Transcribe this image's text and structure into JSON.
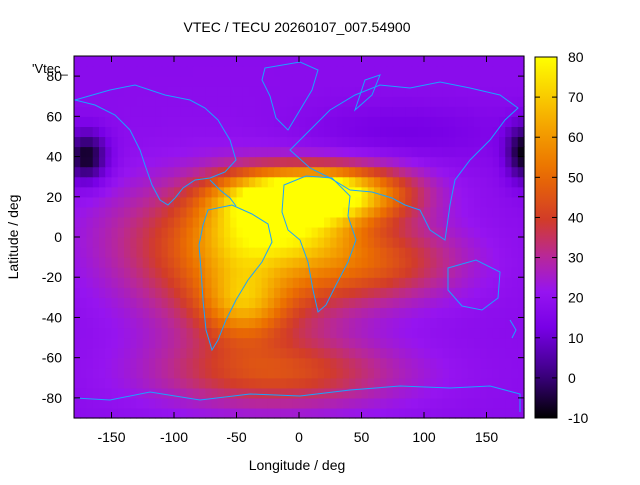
{
  "chart_data": {
    "type": "heatmap",
    "title": "VTEC / TECU 20260107_007.54900",
    "xlabel": "Longitude / deg",
    "ylabel": "Latitude / deg",
    "xlim": [
      -180,
      180
    ],
    "ylim": [
      -90,
      90
    ],
    "x_ticks": [
      -150,
      -100,
      -50,
      0,
      50,
      100,
      150
    ],
    "y_ticks": [
      -80,
      -60,
      -40,
      -20,
      0,
      20,
      40,
      60,
      80
    ],
    "colorbar": {
      "min": -10,
      "max": 80,
      "ticks": [
        -10,
        0,
        10,
        20,
        30,
        40,
        50,
        60,
        70,
        80
      ]
    },
    "key_label": "'Vtec_",
    "background_level": 18,
    "features": [
      {
        "lon": -5,
        "lat": 21,
        "peak": 62,
        "sx": 38,
        "sy": 9
      },
      {
        "lon": 25,
        "lat": 22,
        "peak": 10,
        "sx": 20,
        "sy": 8
      },
      {
        "lon": -45,
        "lat": 4,
        "peak": 22,
        "sx": 28,
        "sy": 14
      },
      {
        "lon": 5,
        "lat": 2,
        "peak": 22,
        "sx": 30,
        "sy": 10
      },
      {
        "lon": -45,
        "lat": -33,
        "peak": 24,
        "sx": 22,
        "sy": 12
      },
      {
        "lon": 55,
        "lat": 22,
        "peak": 28,
        "sx": 35,
        "sy": 10
      },
      {
        "lon": 60,
        "lat": -12,
        "peak": 24,
        "sx": 50,
        "sy": 14
      },
      {
        "lon": -40,
        "lat": -15,
        "peak": 30,
        "sx": 55,
        "sy": 28
      },
      {
        "lon": -15,
        "lat": -68,
        "peak": 22,
        "sx": 70,
        "sy": 12
      },
      {
        "lon": -110,
        "lat": 0,
        "peak": 10,
        "sx": 50,
        "sy": 20
      },
      {
        "lon": -170,
        "lat": 40,
        "peak": -26,
        "sx": 12,
        "sy": 9
      },
      {
        "lon": 180,
        "lat": 42,
        "peak": -26,
        "sx": 10,
        "sy": 10
      },
      {
        "lon": 80,
        "lat": 52,
        "peak": -6,
        "sx": 60,
        "sy": 10
      }
    ]
  }
}
